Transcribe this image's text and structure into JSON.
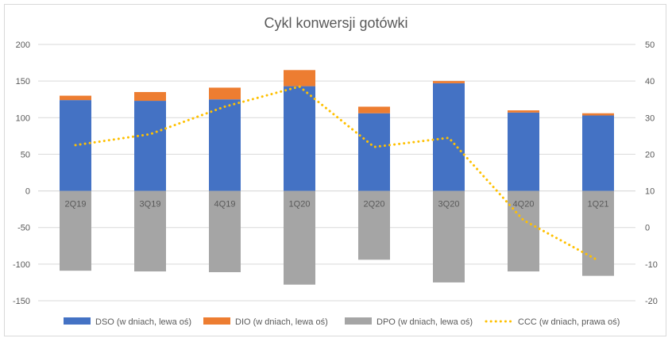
{
  "chart_data": {
    "type": "bar",
    "title": "Cykl konwersji gotówki",
    "categories": [
      "2Q19",
      "3Q19",
      "4Q19",
      "1Q20",
      "2Q20",
      "3Q20",
      "4Q20",
      "1Q21"
    ],
    "left_axis": {
      "min": -150,
      "max": 200,
      "ticks": [
        200,
        150,
        100,
        50,
        0,
        -50,
        -100,
        -150
      ]
    },
    "right_axis": {
      "min": -20,
      "max": 50,
      "ticks": [
        50,
        40,
        30,
        20,
        10,
        0,
        -10,
        -20
      ]
    },
    "gridlines": true,
    "legend_position": "bottom",
    "series": [
      {
        "name": "DSO (w dniach, lewa oś)",
        "type": "stacked-bar",
        "axis": "left",
        "color": "#4472C4",
        "values": [
          124,
          123,
          125,
          143,
          106,
          147,
          107,
          103
        ]
      },
      {
        "name": "DIO (w dniach, lewa oś)",
        "type": "stacked-bar",
        "axis": "left",
        "color": "#ED7D31",
        "values": [
          6,
          12,
          16,
          22,
          9,
          3,
          3,
          3
        ]
      },
      {
        "name": "DPO (w dniach, lewa oś)",
        "type": "bar",
        "axis": "left",
        "color": "#A5A5A5",
        "values": [
          -109,
          -110,
          -111,
          -128,
          -94,
          -125,
          -110,
          -116
        ]
      },
      {
        "name": "CCC (w dniach, prawa oś)",
        "type": "line-dotted",
        "axis": "right",
        "color": "#FFC000",
        "values": [
          22.5,
          25.5,
          33,
          38.5,
          22,
          24.5,
          2,
          -9
        ]
      }
    ]
  }
}
